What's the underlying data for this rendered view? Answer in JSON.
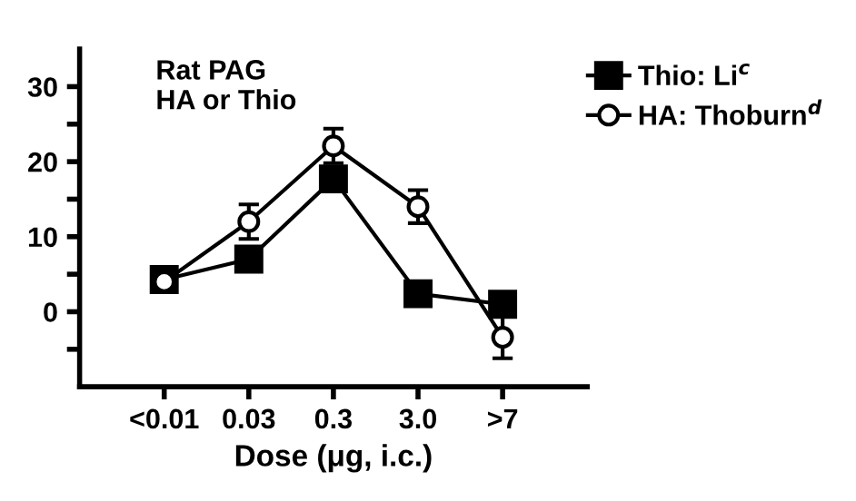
{
  "chart_data": {
    "type": "line",
    "xlabel": "Dose (μg, i.c.)",
    "annotations": [
      "Rat PAG\nHA or Thio"
    ],
    "categories": [
      "<0.01",
      "0.03",
      "0.3",
      "3.0",
      ">7"
    ],
    "series": [
      {
        "name": "Thio: Li$^{c}$",
        "color": "#000000",
        "marker": "square",
        "values": [
          4.3,
          7.0,
          17.7,
          2.4,
          1.0
        ],
        "errors": [
          1.5,
          1.0,
          1.5,
          1.5,
          1.5
        ]
      },
      {
        "name": "HA: Thoburn$^{d}$",
        "color": "#000000",
        "marker": "circle",
        "values": [
          4.0,
          12.0,
          22.1,
          14.0,
          -3.4
        ],
        "errors": [
          1.0,
          2.3,
          2.3,
          2.2,
          2.8
        ]
      }
    ],
    "ylim": [
      -10,
      35
    ],
    "yticks": [
      {
        "value": -5,
        "label": null
      },
      0,
      {
        "value": 5,
        "label": null
      },
      10,
      {
        "value": 15,
        "label": null
      },
      20,
      {
        "value": 25,
        "label": null
      },
      30
    ],
    "grid": false,
    "legend": "top right",
    "line_style": "solid"
  }
}
